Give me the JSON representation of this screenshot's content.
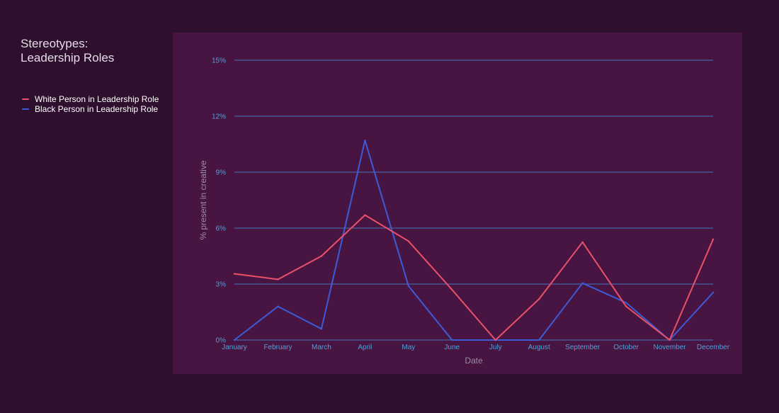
{
  "chart_data": {
    "type": "line",
    "title_lines": [
      "Stereotypes:",
      "Leadership Roles"
    ],
    "xlabel": "Date",
    "ylabel": "% present in creative",
    "ylim": [
      0,
      15
    ],
    "y_ticks": [
      0,
      3,
      6,
      9,
      12,
      15
    ],
    "y_tick_labels": [
      "0%",
      "3%",
      "6%",
      "9%",
      "12%",
      "15%"
    ],
    "categories": [
      "January",
      "February",
      "March",
      "April",
      "May",
      "June",
      "July",
      "August",
      "September",
      "October",
      "November",
      "December"
    ],
    "legend_position": "left",
    "series": [
      {
        "name": "White Person in Leadership Role",
        "color": "#e9506a",
        "values": [
          3.55,
          3.25,
          4.5,
          6.7,
          5.3,
          2.7,
          0,
          2.2,
          5.25,
          1.8,
          0,
          5.4
        ]
      },
      {
        "name": "Black Person in Leadership Role",
        "color": "#3c5bd6",
        "values": [
          0,
          1.8,
          0.6,
          10.7,
          2.9,
          0,
          0,
          0,
          3.05,
          2.0,
          0,
          2.55
        ]
      }
    ],
    "gridline_color": "#3f78b8",
    "tick_color": "#4f9fd8"
  }
}
